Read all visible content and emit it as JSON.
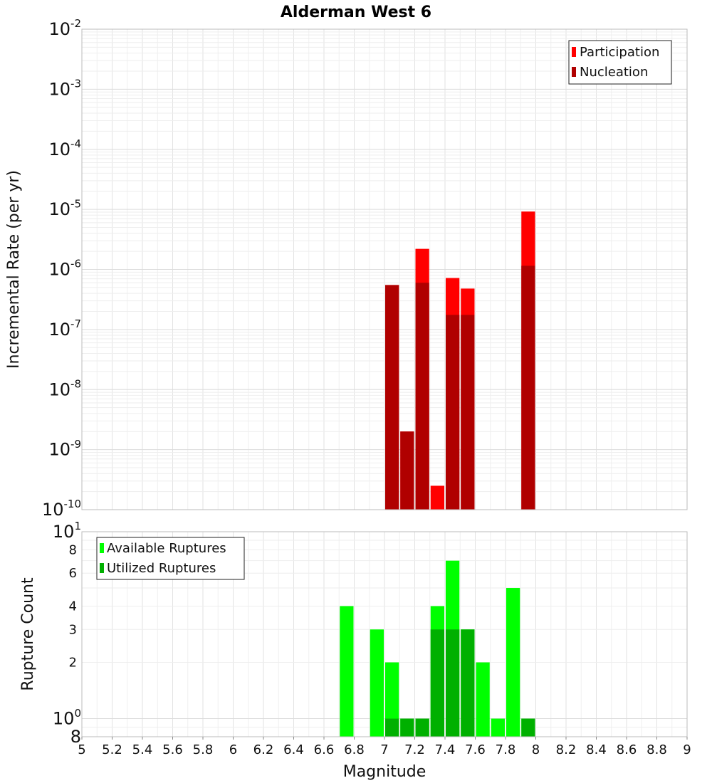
{
  "chart_data": [
    {
      "type": "bar",
      "title": "Alderman West 6",
      "xlabel": "",
      "ylabel": "Incremental Rate (per yr)",
      "yscale": "log",
      "ylim": [
        1e-10,
        0.01
      ],
      "ytick_labels": [
        {
          "base": "10",
          "exp": "-10"
        },
        {
          "base": "10",
          "exp": "-9"
        },
        {
          "base": "10",
          "exp": "-8"
        },
        {
          "base": "10",
          "exp": "-7"
        },
        {
          "base": "10",
          "exp": "-6"
        },
        {
          "base": "10",
          "exp": "-5"
        },
        {
          "base": "10",
          "exp": "-4"
        },
        {
          "base": "10",
          "exp": "-3"
        },
        {
          "base": "10",
          "exp": "-2"
        }
      ],
      "grid": true,
      "legend_position": "top-right",
      "bin_width": 0.1,
      "series": [
        {
          "name": "Participation",
          "color": "#ff0000",
          "points": [
            {
              "x": 7.05,
              "y": 5.5e-07
            },
            {
              "x": 7.15,
              "y": 2e-09
            },
            {
              "x": 7.25,
              "y": 2.2e-06
            },
            {
              "x": 7.35,
              "y": 2.5e-10
            },
            {
              "x": 7.45,
              "y": 7.2e-07
            },
            {
              "x": 7.55,
              "y": 4.8e-07
            },
            {
              "x": 7.95,
              "y": 9.2e-06
            }
          ]
        },
        {
          "name": "Nucleation",
          "color": "#b00000",
          "points": [
            {
              "x": 7.05,
              "y": 5.5e-07
            },
            {
              "x": 7.15,
              "y": 2e-09
            },
            {
              "x": 7.25,
              "y": 6e-07
            },
            {
              "x": 7.45,
              "y": 1.75e-07
            },
            {
              "x": 7.55,
              "y": 1.75e-07
            },
            {
              "x": 7.95,
              "y": 1.15e-06
            }
          ]
        }
      ]
    },
    {
      "type": "bar",
      "title": "",
      "xlabel": "Magnitude",
      "ylabel": "Rupture Count",
      "yscale": "log",
      "ylim": [
        0.8,
        10
      ],
      "xlim": [
        5,
        9
      ],
      "xticks": [
        "5",
        "5.2",
        "5.4",
        "5.6",
        "5.8",
        "6",
        "6.2",
        "6.4",
        "6.6",
        "6.8",
        "7",
        "7.2",
        "7.4",
        "7.6",
        "7.8",
        "8",
        "8.2",
        "8.4",
        "8.6",
        "8.8",
        "9"
      ],
      "ytick_labels_small": [
        {
          "value": 2,
          "label": "2"
        },
        {
          "value": 3,
          "label": "3"
        },
        {
          "value": 4,
          "label": "4"
        },
        {
          "value": 6,
          "label": "6"
        },
        {
          "value": 8,
          "label": "8"
        }
      ],
      "ytick_labels_major": [
        {
          "value": 0.8,
          "base": "8",
          "exp": ""
        },
        {
          "value": 1,
          "base": "10",
          "exp": "0"
        },
        {
          "value": 10,
          "base": "10",
          "exp": "1"
        }
      ],
      "grid": true,
      "legend_position": "top-left",
      "bin_width": 0.1,
      "series": [
        {
          "name": "Available Ruptures",
          "color": "#00ff00",
          "points": [
            {
              "x": 6.75,
              "y": 4
            },
            {
              "x": 6.95,
              "y": 3
            },
            {
              "x": 7.05,
              "y": 2
            },
            {
              "x": 7.15,
              "y": 1
            },
            {
              "x": 7.25,
              "y": 1
            },
            {
              "x": 7.35,
              "y": 4
            },
            {
              "x": 7.45,
              "y": 7
            },
            {
              "x": 7.55,
              "y": 3
            },
            {
              "x": 7.65,
              "y": 2
            },
            {
              "x": 7.75,
              "y": 1
            },
            {
              "x": 7.85,
              "y": 5
            },
            {
              "x": 7.95,
              "y": 1
            }
          ]
        },
        {
          "name": "Utilized Ruptures",
          "color": "#00b000",
          "points": [
            {
              "x": 7.05,
              "y": 1
            },
            {
              "x": 7.15,
              "y": 1
            },
            {
              "x": 7.25,
              "y": 1
            },
            {
              "x": 7.35,
              "y": 3
            },
            {
              "x": 7.45,
              "y": 3
            },
            {
              "x": 7.55,
              "y": 3
            },
            {
              "x": 7.95,
              "y": 1
            }
          ]
        }
      ]
    }
  ]
}
